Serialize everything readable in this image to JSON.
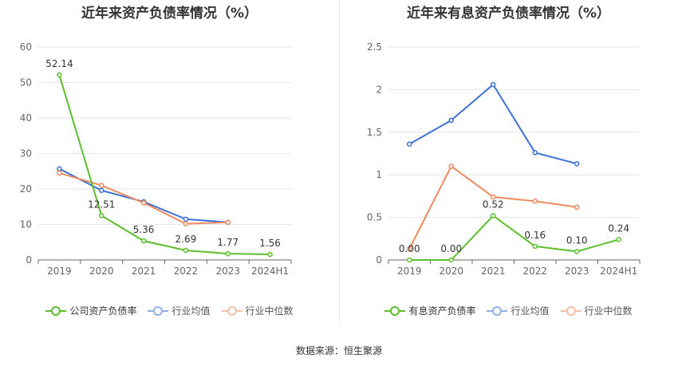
{
  "chart_data": [
    {
      "type": "line",
      "title": "近年来资产负债率情况（%）",
      "categories": [
        "2019",
        "2020",
        "2021",
        "2022",
        "2023",
        "2024H1"
      ],
      "ylim": [
        0,
        60
      ],
      "yticks": [
        "0",
        "10",
        "20",
        "30",
        "40",
        "50",
        "60"
      ],
      "grid": true,
      "legend_position": "bottom",
      "series": [
        {
          "name": "公司资产负债率",
          "color": "#5dbf2c",
          "values": [
            52.14,
            12.51,
            5.36,
            2.69,
            1.77,
            1.56
          ],
          "labels": [
            "52.14",
            "12.51",
            "5.36",
            "2.69",
            "1.77",
            "1.56"
          ]
        },
        {
          "name": "行业均值",
          "color": "#3b6fd8",
          "values": [
            25.7,
            19.6,
            16.4,
            11.5,
            10.6,
            null
          ]
        },
        {
          "name": "行业中位数",
          "color": "#f08a5d",
          "values": [
            24.5,
            21.0,
            16.1,
            10.2,
            10.6,
            null
          ]
        }
      ]
    },
    {
      "type": "line",
      "title": "近年来有息资产负债率情况（%）",
      "categories": [
        "2019",
        "2020",
        "2021",
        "2022",
        "2023",
        "2024H1"
      ],
      "ylim": [
        0,
        2.5
      ],
      "yticks": [
        "0",
        "0.5",
        "1",
        "1.5",
        "2",
        "2.5"
      ],
      "grid": true,
      "legend_position": "bottom",
      "series": [
        {
          "name": "有息资产负债率",
          "color": "#5dbf2c",
          "values": [
            0.0,
            0.0,
            0.52,
            0.16,
            0.1,
            0.24
          ],
          "labels": [
            "0.00",
            "0.00",
            "0.52",
            "0.16",
            "0.10",
            "0.24"
          ]
        },
        {
          "name": "行业均值",
          "color": "#3b6fd8",
          "values": [
            1.36,
            1.64,
            2.06,
            1.26,
            1.13,
            null
          ]
        },
        {
          "name": "行业中位数",
          "color": "#f08a5d",
          "values": [
            0.13,
            1.1,
            0.74,
            0.69,
            0.62,
            null
          ]
        }
      ]
    }
  ],
  "source_text": "数据来源：恒生聚源"
}
